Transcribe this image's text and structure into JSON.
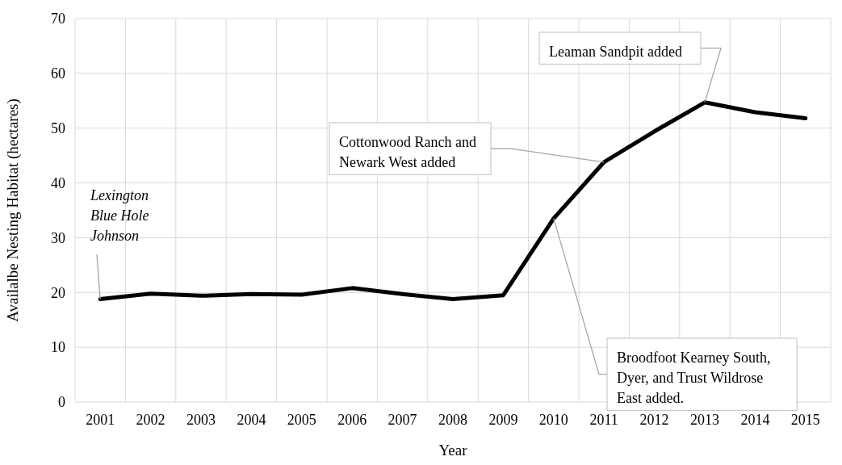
{
  "chart_data": {
    "type": "line",
    "xlabel": "Year",
    "ylabel": "Availalbe Nesting Habitat (hectares)",
    "categories": [
      "2001",
      "2002",
      "2003",
      "2004",
      "2005",
      "2006",
      "2007",
      "2008",
      "2009",
      "2010",
      "2011",
      "2012",
      "2013",
      "2014",
      "2015"
    ],
    "series": [
      {
        "color": "#000000",
        "values": [
          18.8,
          19.8,
          19.4,
          19.7,
          19.6,
          20.8,
          19.7,
          18.8,
          19.5,
          33.5,
          43.8,
          49.4,
          54.7,
          52.9,
          51.8
        ]
      }
    ],
    "ylim": [
      0,
      70
    ],
    "yticks": [
      0,
      10,
      20,
      30,
      40,
      50,
      60,
      70
    ],
    "grid": true,
    "marker": "none",
    "line_style": "solid",
    "annotations": [
      {
        "text": "Lexington\nBlue Hole\nJohnson",
        "x": "2001",
        "y": 18.8
      },
      {
        "text": "Cottonwood Ranch and\nNewark West added",
        "x": "2011",
        "y": 43.8
      },
      {
        "text": "Leaman Sandpit added",
        "x": "2013",
        "y": 54.7
      },
      {
        "text": "Broodfoot Kearney South,\nDyer, and Trust Wildrose\nEast added.",
        "x": "2010",
        "y": 33.5
      }
    ]
  }
}
